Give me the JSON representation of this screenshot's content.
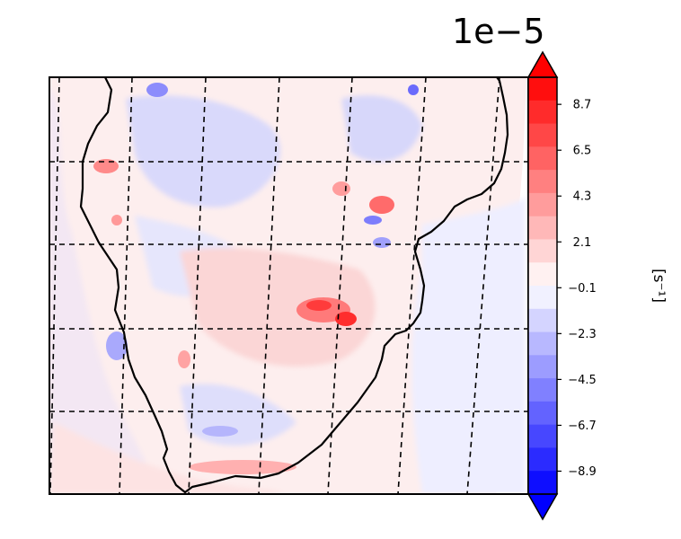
{
  "chart_data": {
    "type": "heatmap",
    "title": "",
    "scale_factor_label": "1e−5",
    "colorbar": {
      "label": "[s⁻¹]",
      "colormap": "bwr",
      "extend": "both",
      "tick_labels": [
        "8.7",
        "6.5",
        "4.3",
        "2.1",
        "−0.1",
        "−2.3",
        "−4.5",
        "−6.7",
        "−8.9"
      ],
      "tick_values": [
        8.7,
        6.5,
        4.3,
        2.1,
        -0.1,
        -2.3,
        -4.5,
        -6.7,
        -8.9
      ],
      "range": [
        -10,
        10
      ],
      "levels": 18
    },
    "map": {
      "region": "Southern Africa",
      "gridlines": true,
      "gridline_style": "dashed",
      "coastline": true
    },
    "colors": {
      "max_red": "#ff0000",
      "max_blue": "#0000ff",
      "neutral": "#ffffff"
    }
  }
}
